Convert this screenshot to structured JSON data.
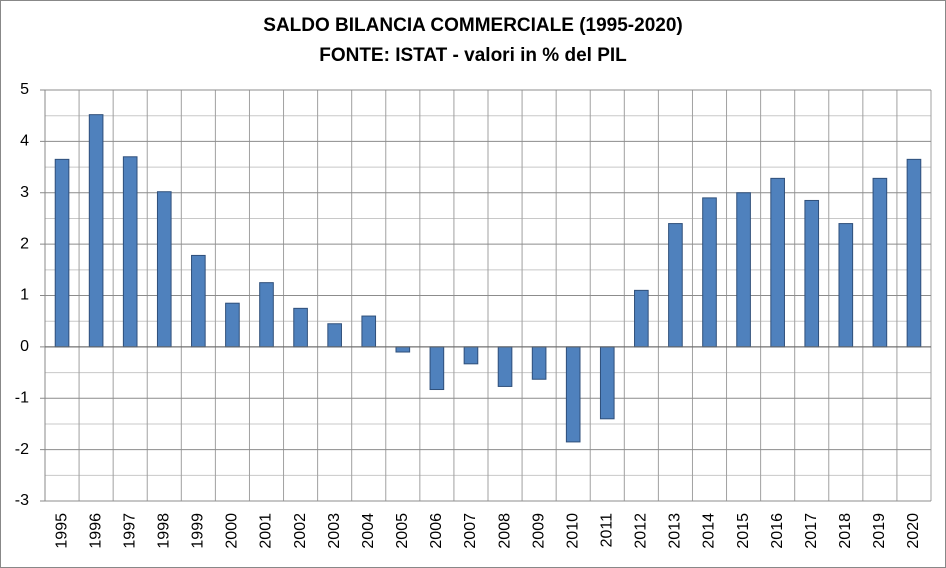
{
  "chart_data": {
    "type": "bar",
    "title": "SALDO BILANCIA COMMERCIALE (1995-2020)",
    "subtitle": "FONTE: ISTAT - valori in % del PIL",
    "categories": [
      "1995",
      "1996",
      "1997",
      "1998",
      "1999",
      "2000",
      "2001",
      "2002",
      "2003",
      "2004",
      "2005",
      "2006",
      "2007",
      "2008",
      "2009",
      "2010",
      "2011",
      "2012",
      "2013",
      "2014",
      "2015",
      "2016",
      "2017",
      "2018",
      "2019",
      "2020"
    ],
    "values": [
      3.65,
      4.52,
      3.7,
      3.02,
      1.78,
      0.85,
      1.25,
      0.75,
      0.45,
      0.6,
      -0.1,
      -0.83,
      -0.33,
      -0.77,
      -0.63,
      -1.85,
      -1.4,
      1.1,
      2.4,
      2.9,
      3.0,
      3.28,
      2.85,
      2.4,
      3.28,
      3.65
    ],
    "color": "#4f81bd",
    "ylim": [
      -3,
      5
    ],
    "yticks": [
      -3,
      -2,
      -1,
      0,
      1,
      2,
      3,
      4,
      5
    ],
    "minor_yticks": [
      -2.5,
      -1.5,
      -0.5,
      0.5,
      1.5,
      2.5,
      3.5,
      4.5
    ],
    "grid": true
  }
}
